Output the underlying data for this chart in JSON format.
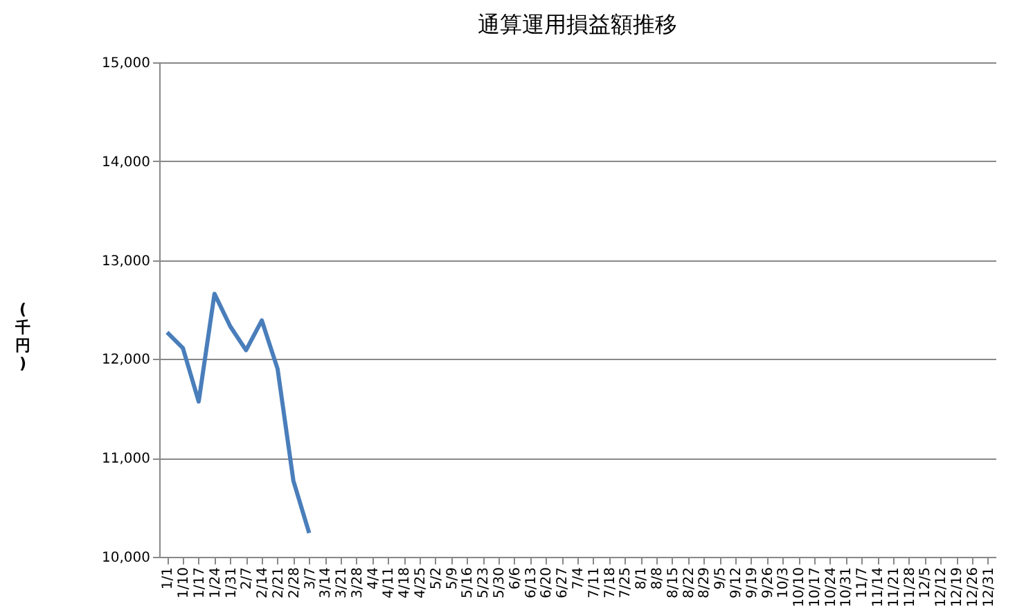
{
  "chart_data": {
    "type": "line",
    "title": "通算運用損益額推移",
    "ylabel": "(千円)",
    "categories": [
      "1/1",
      "1/10",
      "1/17",
      "1/24",
      "1/31",
      "2/7",
      "2/14",
      "2/21",
      "2/28",
      "3/7",
      "3/14",
      "3/21",
      "3/28",
      "4/4",
      "4/11",
      "4/18",
      "4/25",
      "5/2",
      "5/9",
      "5/16",
      "5/23",
      "5/30",
      "6/6",
      "6/13",
      "6/20",
      "6/27",
      "7/4",
      "7/11",
      "7/18",
      "7/25",
      "8/1",
      "8/8",
      "8/15",
      "8/22",
      "8/29",
      "9/5",
      "9/12",
      "9/19",
      "9/26",
      "10/3",
      "10/10",
      "10/17",
      "10/24",
      "10/31",
      "11/7",
      "11/14",
      "11/21",
      "11/28",
      "12/5",
      "12/12",
      "12/19",
      "12/26",
      "12/31"
    ],
    "series": [
      {
        "color": "#4a7ebb",
        "values": [
          12270,
          12110,
          11570,
          12660,
          12330,
          12090,
          12390,
          11900,
          10770,
          10240,
          null,
          null,
          null,
          null,
          null,
          null,
          null,
          null,
          null,
          null,
          null,
          null,
          null,
          null,
          null,
          null,
          null,
          null,
          null,
          null,
          null,
          null,
          null,
          null,
          null,
          null,
          null,
          null,
          null,
          null,
          null,
          null,
          null,
          null,
          null,
          null,
          null,
          null,
          null,
          null,
          null,
          null,
          null
        ]
      }
    ],
    "ylim": [
      10000,
      15000
    ],
    "yticks": [
      {
        "value": 10000,
        "label": "10,000"
      },
      {
        "value": 11000,
        "label": "11,000"
      },
      {
        "value": 12000,
        "label": "12,000"
      },
      {
        "value": 13000,
        "label": "13,000"
      },
      {
        "value": 14000,
        "label": "14,000"
      },
      {
        "value": 15000,
        "label": "15,000"
      }
    ],
    "grid": "y"
  }
}
